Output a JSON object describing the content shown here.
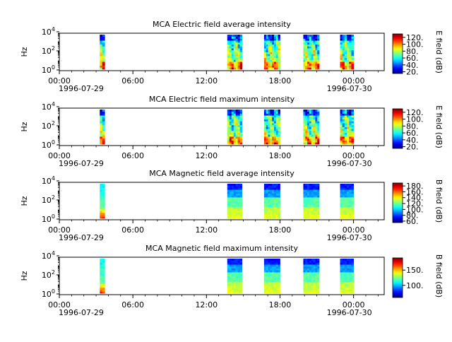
{
  "chart_data": [
    {
      "type": "heatmap",
      "title": "MCA  Electric field average intensity",
      "ylabel": "Hz",
      "colorbar_label": "E field (dB)",
      "x_ticks": [
        "00:00",
        "06:00",
        "12:00",
        "18:00",
        "00:00"
      ],
      "x_start_date": "1996-07-29",
      "x_end_date": "1996-07-30",
      "y_ticks": [
        {
          "base": "10",
          "exp": "0"
        },
        {
          "base": "10",
          "exp": "2"
        },
        {
          "base": "10",
          "exp": "4"
        }
      ],
      "colorbar_ticks": [
        "20.",
        "40.",
        "60.",
        "80.",
        "100.",
        "120."
      ],
      "colorbar_range": [
        15,
        130
      ],
      "data_blocks_utc_hours": [
        [
          3.3,
          3.7
        ],
        [
          13.7,
          14.9
        ],
        [
          16.7,
          18.0
        ],
        [
          19.9,
          21.2
        ],
        [
          22.9,
          24.0
        ]
      ],
      "character": "electric"
    },
    {
      "type": "heatmap",
      "title": "MCA  Electric field maximum intensity",
      "ylabel": "Hz",
      "colorbar_label": "E field (dB)",
      "x_ticks": [
        "00:00",
        "06:00",
        "12:00",
        "18:00",
        "00:00"
      ],
      "x_start_date": "1996-07-29",
      "x_end_date": "1996-07-30",
      "y_ticks": [
        {
          "base": "10",
          "exp": "0"
        },
        {
          "base": "10",
          "exp": "2"
        },
        {
          "base": "10",
          "exp": "4"
        }
      ],
      "colorbar_ticks": [
        "20.",
        "40.",
        "60.",
        "80.",
        "100.",
        "120."
      ],
      "colorbar_range": [
        15,
        130
      ],
      "data_blocks_utc_hours": [
        [
          3.3,
          3.7
        ],
        [
          13.7,
          14.9
        ],
        [
          16.7,
          18.0
        ],
        [
          19.9,
          21.2
        ],
        [
          22.9,
          24.0
        ]
      ],
      "character": "electric"
    },
    {
      "type": "heatmap",
      "title": "MCA  Magnetic field average intensity",
      "ylabel": "Hz",
      "colorbar_label": "B field (dB)",
      "x_ticks": [
        "00:00",
        "06:00",
        "12:00",
        "18:00",
        "00:00"
      ],
      "x_start_date": "1996-07-29",
      "x_end_date": "1996-07-30",
      "y_ticks": [
        {
          "base": "10",
          "exp": "0"
        },
        {
          "base": "10",
          "exp": "2"
        },
        {
          "base": "10",
          "exp": "4"
        }
      ],
      "colorbar_ticks": [
        "60.",
        "80.",
        "100.",
        "120.",
        "140.",
        "160.",
        "180."
      ],
      "colorbar_range": [
        55,
        190
      ],
      "data_blocks_utc_hours": [
        [
          3.3,
          3.7
        ],
        [
          13.7,
          14.9
        ],
        [
          16.7,
          18.0
        ],
        [
          19.9,
          21.2
        ],
        [
          22.9,
          24.0
        ]
      ],
      "character": "magnetic"
    },
    {
      "type": "heatmap",
      "title": "MCA  Magnetic field maximum intensity",
      "ylabel": "Hz",
      "colorbar_label": "B field (dB)",
      "x_ticks": [
        "00:00",
        "06:00",
        "12:00",
        "18:00",
        "00:00"
      ],
      "x_start_date": "1996-07-29",
      "x_end_date": "1996-07-30",
      "y_ticks": [
        {
          "base": "10",
          "exp": "0"
        },
        {
          "base": "10",
          "exp": "2"
        },
        {
          "base": "10",
          "exp": "4"
        }
      ],
      "colorbar_ticks": [
        "100.",
        "150."
      ],
      "colorbar_range": [
        60,
        190
      ],
      "data_blocks_utc_hours": [
        [
          3.3,
          3.7
        ],
        [
          13.7,
          14.9
        ],
        [
          16.7,
          18.0
        ],
        [
          19.9,
          21.2
        ],
        [
          22.9,
          24.0
        ]
      ],
      "character": "magnetic"
    }
  ]
}
